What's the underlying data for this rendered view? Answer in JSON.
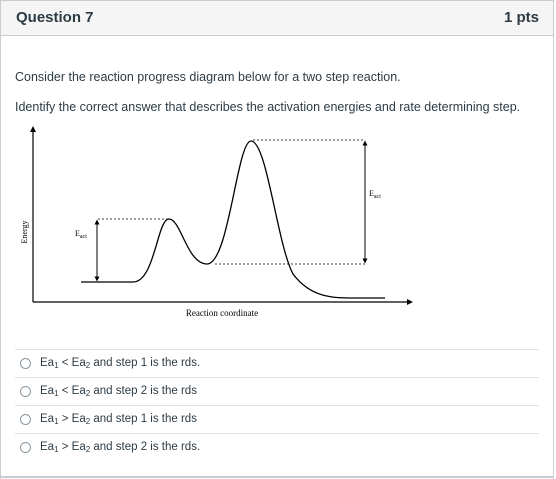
{
  "question": {
    "title": "Question 7",
    "points": "1 pts",
    "prompt1": "Consider the reaction progress diagram below for a two step reaction.",
    "prompt2": "Identify the correct answer that describes the activation energies and rate determining step."
  },
  "diagram": {
    "y_axis_label": "Energy",
    "x_axis_label": "Reaction coordinate",
    "ea_label_main": "E",
    "ea_label_sub": "act"
  },
  "answers": [
    {
      "ea": "Ea",
      "one": "1",
      "op": "<",
      "two": "2",
      "rest": "and step 1 is the rds."
    },
    {
      "ea": "Ea",
      "one": "1",
      "op": "<",
      "two": "2",
      "rest": "and step 2 is the rds"
    },
    {
      "ea": "Ea",
      "one": "1",
      "op": ">",
      "two": "2",
      "rest": "and step 1 is the rds"
    },
    {
      "ea": "Ea",
      "one": "1",
      "op": ">",
      "two": "2",
      "rest": "and step 2 is the rds."
    }
  ]
}
